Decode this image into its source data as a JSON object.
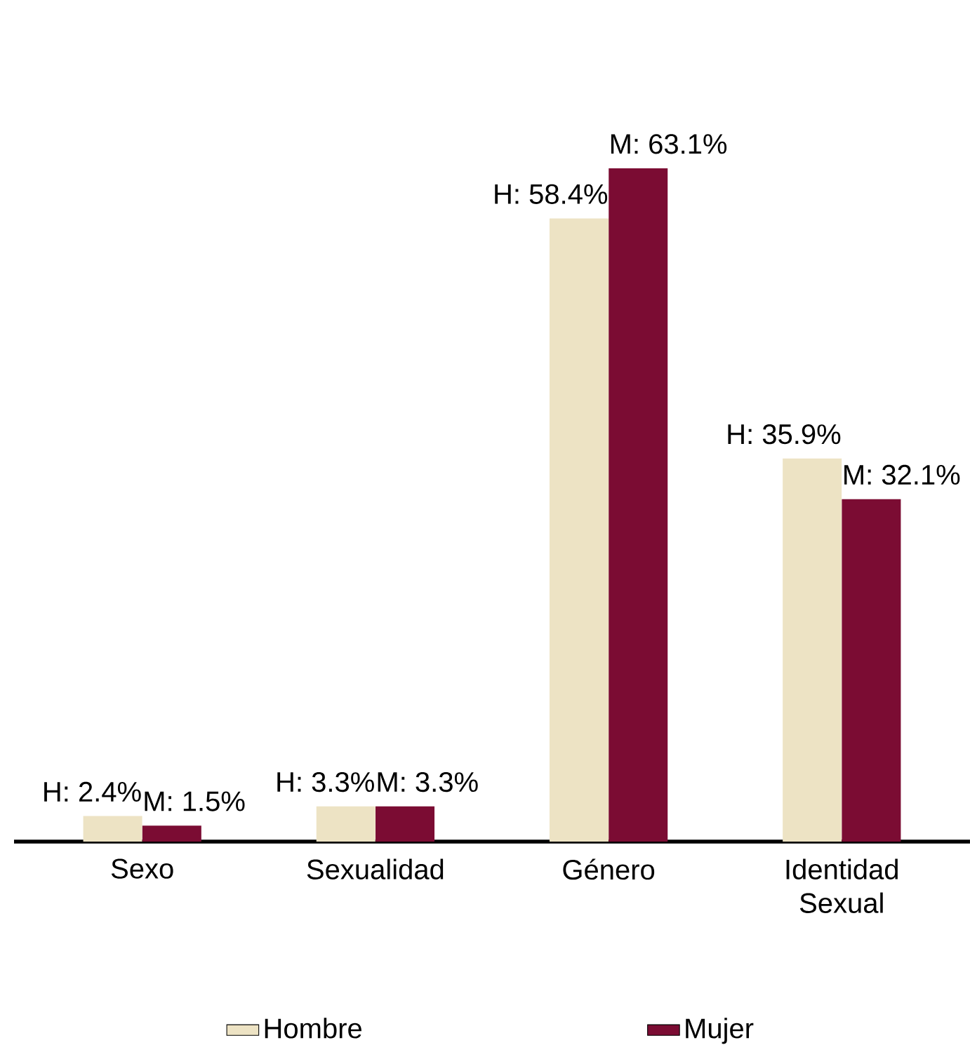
{
  "chart_data": {
    "type": "bar",
    "categories": [
      "Sexo",
      "Sexualidad",
      "Género",
      "Identidad Sexual"
    ],
    "series": [
      {
        "name": "Hombre",
        "color": "#ede3c4",
        "values": [
          2.4,
          3.3,
          58.4,
          35.9
        ],
        "value_labels": [
          "H: 2.4%",
          "H: 3.3%",
          "H: 58.4%",
          "H: 35.9%"
        ]
      },
      {
        "name": "Mujer",
        "color": "#7b0c33",
        "values": [
          1.5,
          3.3,
          63.1,
          32.1
        ],
        "value_labels": [
          "M: 1.5%",
          "M: 3.3%",
          "M: 63.1%",
          "M: 32.1%"
        ]
      }
    ],
    "legend": "bottom"
  }
}
